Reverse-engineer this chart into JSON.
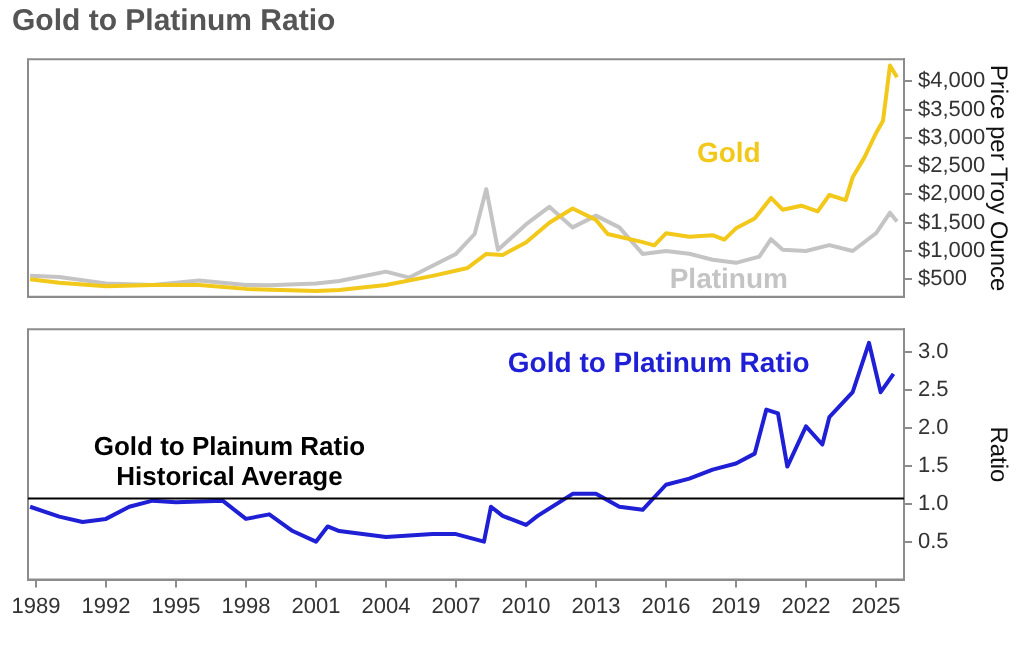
{
  "chart_data": [
    {
      "type": "line",
      "title": "Gold to Platinum Ratio",
      "ylabel": "Price per Troy Ounce",
      "xlim": [
        1988.66,
        2026.2
      ],
      "ylim": [
        190,
        4390
      ],
      "yticks": [
        {
          "value": 500,
          "label": "$500"
        },
        {
          "value": 1000,
          "label": "$1,000"
        },
        {
          "value": 1500,
          "label": "$1,500"
        },
        {
          "value": 2000,
          "label": "$2,000"
        },
        {
          "value": 2500,
          "label": "$2,500"
        },
        {
          "value": 3000,
          "label": "$3,000"
        },
        {
          "value": 3500,
          "label": "$3,500"
        },
        {
          "value": 4000,
          "label": "$4,000"
        }
      ],
      "tick_labels": "y",
      "grid": false,
      "legend": false,
      "marker": "none",
      "series": [
        {
          "name": "Gold",
          "color": "#f2c81a",
          "x": [
            1988.75,
            1990,
            1992,
            1994,
            1996,
            1998,
            2001,
            2002,
            2004,
            2006,
            2007.5,
            2008.3,
            2009,
            2010,
            2011,
            2012,
            2013,
            2013.5,
            2015,
            2015.5,
            2016,
            2017,
            2018,
            2018.5,
            2019,
            2019.8,
            2020.5,
            2021,
            2021.8,
            2022.5,
            2023,
            2023.7,
            2024,
            2024.5,
            2025,
            2025.3,
            2025.6,
            2025.9
          ],
          "values": [
            500,
            440,
            375,
            400,
            400,
            330,
            292,
            310,
            400,
            560,
            700,
            948,
            930,
            1150,
            1500,
            1750,
            1550,
            1300,
            1156,
            1100,
            1313,
            1250,
            1280,
            1200,
            1400,
            1573,
            1938,
            1730,
            1800,
            1700,
            1990,
            1900,
            2302,
            2650,
            3083,
            3300,
            4280,
            4070
          ]
        },
        {
          "name": "Platinum",
          "color": "#c4c4c4",
          "x": [
            1988.75,
            1990,
            1992,
            1994,
            1996,
            1998,
            1999,
            2001,
            2002,
            2004,
            2005,
            2006,
            2007,
            2007.8,
            2008.3,
            2008.8,
            2010,
            2011,
            2012,
            2013,
            2014,
            2015,
            2016,
            2017,
            2018,
            2019,
            2020,
            2020.5,
            2021,
            2022,
            2023,
            2024,
            2025,
            2025.6,
            2025.9
          ],
          "values": [
            560,
            540,
            427,
            400,
            480,
            400,
            396,
            427,
            470,
            635,
            530,
            740,
            948,
            1300,
            2094,
            1020,
            1469,
            1780,
            1417,
            1625,
            1417,
            948,
            1000,
            950,
            844,
            790,
            900,
            1208,
            1020,
            1000,
            1104,
            1000,
            1313,
            1677,
            1521
          ]
        }
      ]
    },
    {
      "type": "line",
      "ylabel": "Ratio",
      "xlim": [
        1988.66,
        2026.2
      ],
      "xticks": [
        1989,
        1992,
        1995,
        1998,
        2001,
        2004,
        2007,
        2010,
        2013,
        2016,
        2019,
        2022,
        2025
      ],
      "ylim": [
        0,
        3.3
      ],
      "yticks": [
        {
          "value": 0.5,
          "label": "0.5"
        },
        {
          "value": 1,
          "label": "1.0"
        },
        {
          "value": 1.5,
          "label": "1.5"
        },
        {
          "value": 2,
          "label": "2.0"
        },
        {
          "value": 2.5,
          "label": "2.5"
        },
        {
          "value": 3,
          "label": "3.0"
        }
      ],
      "grid": false,
      "legend": false,
      "marker": "none",
      "ref_lines": [
        {
          "axis": "y",
          "value": 1.07,
          "label": "Gold to Plainum Ratio\nHistorical Average",
          "color": "#000000"
        }
      ],
      "series": [
        {
          "name": "Gold to Platinum Ratio",
          "color": "#1f1fd6",
          "x": [
            1988.75,
            1990,
            1991,
            1992,
            1993,
            1994,
            1995,
            1997,
            1998,
            1999,
            2000,
            2001,
            2001.5,
            2002,
            2004,
            2006,
            2007,
            2008.2,
            2008.5,
            2009,
            2010,
            2010.5,
            2012,
            2013,
            2014,
            2015,
            2016,
            2017,
            2018,
            2019,
            2019.8,
            2020.3,
            2020.8,
            2021.2,
            2022,
            2022.7,
            2023,
            2024,
            2024.7,
            2025.2,
            2025.75
          ],
          "values": [
            0.96,
            0.83,
            0.76,
            0.8,
            0.96,
            1.04,
            1.02,
            1.04,
            0.8,
            0.86,
            0.64,
            0.5,
            0.7,
            0.64,
            0.56,
            0.6,
            0.6,
            0.5,
            0.96,
            0.84,
            0.72,
            0.84,
            1.13,
            1.13,
            0.96,
            0.92,
            1.25,
            1.33,
            1.45,
            1.53,
            1.66,
            2.24,
            2.19,
            1.49,
            2.02,
            1.78,
            2.14,
            2.47,
            3.12,
            2.47,
            2.71
          ]
        }
      ]
    }
  ]
}
